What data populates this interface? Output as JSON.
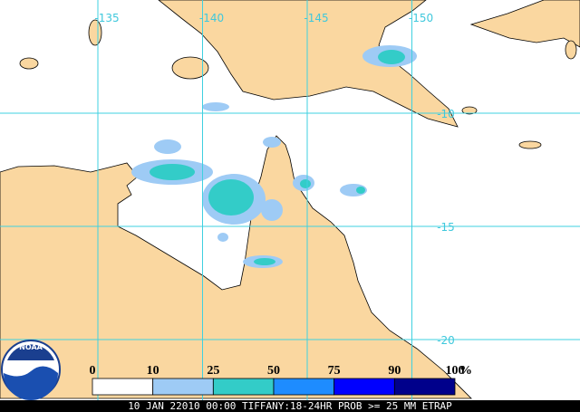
{
  "map": {
    "lon_labels": [
      -135,
      -140,
      -145,
      -150
    ],
    "lat_labels": [
      -10,
      -15,
      -20
    ]
  },
  "legend": {
    "ticks": [
      0,
      10,
      25,
      50,
      75,
      90,
      100
    ],
    "unit": "%",
    "colors": [
      "#ffffff",
      "#9ecbf5",
      "#33ccc8",
      "#1e8cff",
      "#0000ff",
      "#00008b"
    ]
  },
  "logo": "NOAA",
  "footer": "10 JAN 22010 00:00 TIFFANY:18-24HR PROB >= 25 MM ETRAP"
}
